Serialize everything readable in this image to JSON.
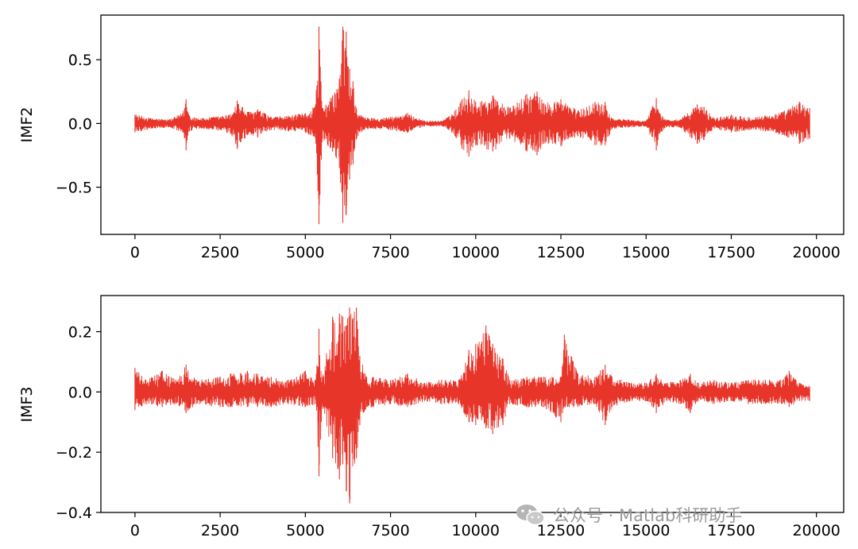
{
  "chart_data": [
    {
      "type": "line",
      "ylabel": "IMF2",
      "xlabel": "",
      "color": "#e8352a",
      "xlim": [
        -1000,
        20800
      ],
      "ylim": [
        -0.87,
        0.85
      ],
      "xticks": [
        0,
        2500,
        5000,
        7500,
        10000,
        12500,
        15000,
        17500,
        20000
      ],
      "xtick_labels": [
        "0",
        "2500",
        "5000",
        "7500",
        "10000",
        "12500",
        "15000",
        "17500",
        "20000"
      ],
      "yticks": [
        0.5,
        0.0,
        -0.5
      ],
      "ytick_labels": [
        "0.5",
        "0.0",
        "−0.5"
      ],
      "series": [
        {
          "x": [
            0,
            500,
            1000,
            1400,
            1500,
            1600,
            2000,
            2800,
            3000,
            3300,
            3600,
            4000,
            4500,
            5000,
            5300,
            5400,
            5500,
            5800,
            6000,
            6100,
            6200,
            6300,
            6400,
            6500,
            6700,
            7000,
            7500,
            8000,
            8500,
            9000,
            9300,
            9600,
            9800,
            10000,
            10500,
            11000,
            11500,
            11800,
            12000,
            12500,
            13000,
            13500,
            13800,
            14000,
            14500,
            15000,
            15300,
            15400,
            15600,
            16000,
            16500,
            16700,
            17000,
            17500,
            18000,
            18500,
            19000,
            19500,
            19800
          ],
          "y_upper": [
            0.07,
            0.04,
            0.03,
            0.08,
            0.19,
            0.06,
            0.04,
            0.07,
            0.18,
            0.09,
            0.11,
            0.05,
            0.06,
            0.08,
            0.15,
            0.76,
            0.12,
            0.22,
            0.35,
            0.76,
            0.72,
            0.43,
            0.33,
            0.12,
            0.05,
            0.04,
            0.05,
            0.08,
            0.02,
            0.02,
            0.07,
            0.19,
            0.26,
            0.17,
            0.22,
            0.12,
            0.23,
            0.25,
            0.16,
            0.19,
            0.1,
            0.17,
            0.17,
            0.04,
            0.03,
            0.02,
            0.2,
            0.08,
            0.03,
            0.03,
            0.15,
            0.13,
            0.04,
            0.07,
            0.05,
            0.06,
            0.09,
            0.17,
            0.12
          ],
          "y_lower": [
            -0.07,
            -0.04,
            -0.03,
            -0.07,
            -0.21,
            -0.06,
            -0.04,
            -0.08,
            -0.2,
            -0.09,
            -0.11,
            -0.05,
            -0.06,
            -0.07,
            -0.12,
            -0.79,
            -0.12,
            -0.22,
            -0.35,
            -0.78,
            -0.72,
            -0.44,
            -0.32,
            -0.12,
            -0.05,
            -0.04,
            -0.05,
            -0.07,
            -0.02,
            -0.02,
            -0.07,
            -0.2,
            -0.26,
            -0.17,
            -0.22,
            -0.12,
            -0.22,
            -0.25,
            -0.16,
            -0.18,
            -0.1,
            -0.17,
            -0.17,
            -0.04,
            -0.03,
            -0.02,
            -0.21,
            -0.08,
            -0.03,
            -0.03,
            -0.16,
            -0.13,
            -0.04,
            -0.07,
            -0.05,
            -0.06,
            -0.09,
            -0.16,
            -0.12
          ]
        }
      ]
    },
    {
      "type": "line",
      "ylabel": "IMF3",
      "xlabel": "",
      "color": "#e8352a",
      "xlim": [
        -1000,
        20800
      ],
      "ylim": [
        -0.4,
        0.32
      ],
      "xticks": [
        0,
        2500,
        5000,
        7500,
        10000,
        12500,
        15000,
        17500,
        20000
      ],
      "xtick_labels": [
        "0",
        "2500",
        "5000",
        "7500",
        "10000",
        "12500",
        "15000",
        "17500",
        "20000"
      ],
      "yticks": [
        0.2,
        0.0,
        -0.2,
        -0.4
      ],
      "ytick_labels": [
        "0.2",
        "0.0",
        "−0.2",
        "−0.4"
      ],
      "series": [
        {
          "x": [
            0,
            300,
            800,
            1200,
            1500,
            1800,
            2500,
            2800,
            3300,
            3600,
            4000,
            4500,
            5000,
            5300,
            5400,
            5500,
            5800,
            6000,
            6100,
            6200,
            6300,
            6500,
            6600,
            6800,
            7000,
            7500,
            8000,
            8500,
            9000,
            9500,
            9800,
            10000,
            10300,
            10500,
            10800,
            11000,
            11500,
            12000,
            12500,
            12600,
            13000,
            13500,
            13800,
            14000,
            14500,
            15000,
            15300,
            15600,
            16000,
            16300,
            16500,
            17000,
            17500,
            18000,
            18500,
            19000,
            19200,
            19500,
            19800
          ],
          "y_upper": [
            0.08,
            0.04,
            0.07,
            0.04,
            0.09,
            0.04,
            0.05,
            0.06,
            0.07,
            0.06,
            0.05,
            0.04,
            0.07,
            0.04,
            0.21,
            0.05,
            0.25,
            0.26,
            0.25,
            0.22,
            0.28,
            0.28,
            0.12,
            0.05,
            0.05,
            0.04,
            0.06,
            0.03,
            0.04,
            0.04,
            0.14,
            0.16,
            0.22,
            0.16,
            0.11,
            0.04,
            0.05,
            0.05,
            0.05,
            0.19,
            0.06,
            0.05,
            0.09,
            0.05,
            0.03,
            0.03,
            0.06,
            0.03,
            0.04,
            0.06,
            0.03,
            0.04,
            0.03,
            0.04,
            0.04,
            0.04,
            0.07,
            0.03,
            0.02
          ],
          "y_lower": [
            -0.06,
            -0.04,
            -0.05,
            -0.04,
            -0.07,
            -0.04,
            -0.05,
            -0.05,
            -0.05,
            -0.05,
            -0.05,
            -0.04,
            -0.05,
            -0.04,
            -0.28,
            -0.05,
            -0.22,
            -0.29,
            -0.24,
            -0.33,
            -0.37,
            -0.22,
            -0.11,
            -0.05,
            -0.05,
            -0.04,
            -0.05,
            -0.03,
            -0.04,
            -0.04,
            -0.1,
            -0.11,
            -0.12,
            -0.14,
            -0.11,
            -0.04,
            -0.05,
            -0.05,
            -0.1,
            -0.05,
            -0.05,
            -0.04,
            -0.11,
            -0.05,
            -0.03,
            -0.03,
            -0.07,
            -0.03,
            -0.04,
            -0.07,
            -0.03,
            -0.04,
            -0.03,
            -0.04,
            -0.04,
            -0.04,
            -0.05,
            -0.03,
            -0.03
          ]
        }
      ]
    }
  ],
  "watermark": {
    "text": "公众号 · Matlab科研助手",
    "icon": "wechat-icon"
  }
}
